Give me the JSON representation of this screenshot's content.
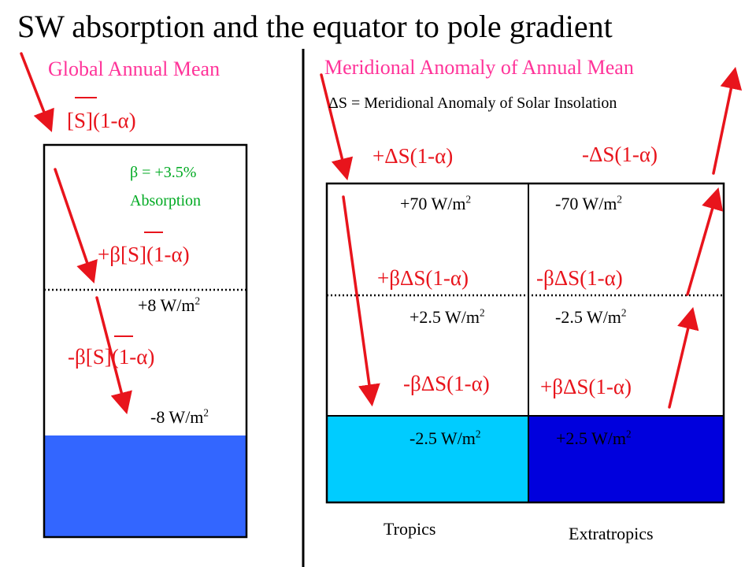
{
  "title": "SW absorption and the equator to pole gradient",
  "left_panel": {
    "header": "Global Annual Mean",
    "top_formula": {
      "s": "[S]",
      "rest": "(1-α)"
    },
    "beta_line1": "β = +3.5%",
    "beta_line2": "Absorption",
    "upper_formula": {
      "pre": "+β",
      "s": "[S]",
      "rest": "(1-α)"
    },
    "upper_value": {
      "num": "+8 W/m",
      "exp": "2"
    },
    "lower_formula": {
      "pre": "-β",
      "s": "[S]",
      "rest": "(1-α)"
    },
    "lower_value": {
      "num": "-8 W/m",
      "exp": "2"
    }
  },
  "right_panel": {
    "header": "Meridional Anomaly of Annual Mean",
    "definition": "ΔS = Meridional Anomaly of Solar Insolation",
    "tropics": {
      "top_formula": "+ΔS(1-α)",
      "top_value": {
        "num": "+70 W/m",
        "exp": "2"
      },
      "upper_formula": "+βΔS(1-α)",
      "upper_value": {
        "num": "+2.5 W/m",
        "exp": "2"
      },
      "lower_formula": "-βΔS(1-α)",
      "surface_value": {
        "num": "-2.5 W/m",
        "exp": "2"
      },
      "label": "Tropics"
    },
    "extratropics": {
      "top_formula": "-ΔS(1-α)",
      "top_value": {
        "num": "-70 W/m",
        "exp": "2"
      },
      "upper_formula": "-βΔS(1-α)",
      "upper_value": {
        "num": "-2.5 W/m",
        "exp": "2"
      },
      "lower_formula": "+βΔS(1-α)",
      "surface_value": {
        "num": "+2.5 W/m",
        "exp": "2"
      },
      "label": "Extratropics"
    }
  },
  "colors": {
    "header_pink": "#ff3399",
    "arrow_red": "#e8141c",
    "tropics_surface": "#00ccff",
    "extratropics_surface": "#0000dd",
    "global_surface": "#3366ff"
  }
}
